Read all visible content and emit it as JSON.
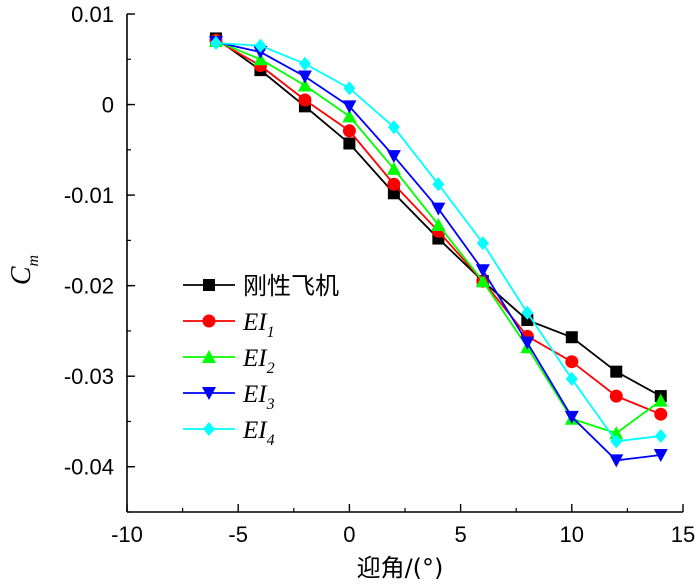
{
  "chart_data": {
    "type": "line",
    "title": "",
    "xlabel": "迎角/(°)",
    "ylabel": {
      "main": "C",
      "sub": "m"
    },
    "xlim": [
      -10,
      15
    ],
    "ylim": [
      -0.045,
      0.01
    ],
    "xticks": [
      -10,
      -5,
      0,
      5,
      10,
      15
    ],
    "xtick_labels": [
      "-10",
      "-5",
      "0",
      "5",
      "10",
      "15"
    ],
    "yticks": [
      0.01,
      0,
      -0.01,
      -0.02,
      -0.03,
      -0.04
    ],
    "ytick_labels": [
      "0.01",
      "0",
      "-0.01",
      "-0.02",
      "-0.03",
      "-0.04"
    ],
    "grid": false,
    "legend_position": "center-left",
    "x": [
      -6,
      -4,
      -2,
      0,
      2,
      4,
      6,
      8,
      10,
      12,
      14
    ],
    "series": [
      {
        "name": "刚性飞机",
        "label_main": "刚性飞机",
        "label_sub": "",
        "color": "#000000",
        "marker": "square",
        "values": [
          0.0073,
          0.0038,
          -0.0002,
          -0.0043,
          -0.0098,
          -0.0148,
          -0.0195,
          -0.0238,
          -0.0257,
          -0.0295,
          -0.0322
        ]
      },
      {
        "name": "EI1",
        "label_main": "EI",
        "label_sub": "1",
        "color": "#ff0000",
        "marker": "circle",
        "values": [
          0.0071,
          0.0043,
          0.0005,
          -0.0029,
          -0.0088,
          -0.014,
          -0.0195,
          -0.0256,
          -0.0284,
          -0.0322,
          -0.0342
        ]
      },
      {
        "name": "EI2",
        "label_main": "EI",
        "label_sub": "2",
        "color": "#00ff00",
        "marker": "triangle-up",
        "values": [
          0.007,
          0.005,
          0.0021,
          -0.0013,
          -0.0071,
          -0.0133,
          -0.0195,
          -0.0268,
          -0.0347,
          -0.0363,
          -0.0327
        ]
      },
      {
        "name": "EI3",
        "label_main": "EI",
        "label_sub": "3",
        "color": "#0000ff",
        "marker": "triangle-down",
        "values": [
          0.0069,
          0.0058,
          0.0031,
          -0.0002,
          -0.0057,
          -0.0115,
          -0.0183,
          -0.0263,
          -0.0345,
          -0.0393,
          -0.0387
        ]
      },
      {
        "name": "EI4",
        "label_main": "EI",
        "label_sub": "4",
        "color": "#00ffff",
        "marker": "diamond",
        "values": [
          0.0068,
          0.0065,
          0.0045,
          0.0018,
          -0.0025,
          -0.0088,
          -0.0153,
          -0.023,
          -0.0303,
          -0.0372,
          -0.0366
        ]
      }
    ]
  }
}
